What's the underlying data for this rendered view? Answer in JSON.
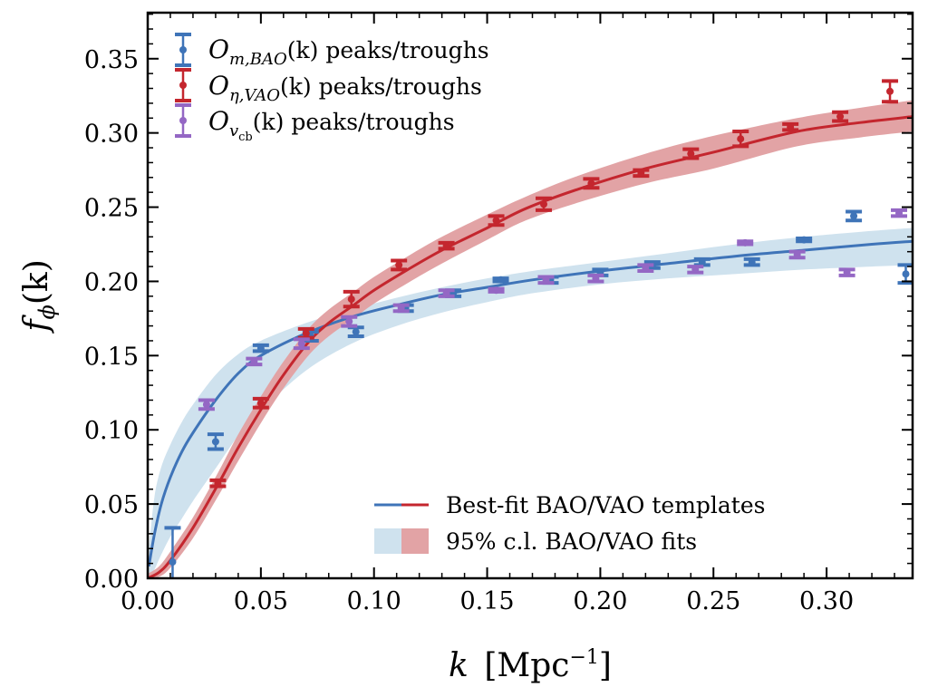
{
  "chart_data": {
    "type": "scatter",
    "title": "",
    "xlabel": "k [Mpc^-1]",
    "xlabel_parts": {
      "var": "k",
      "unit_open": "[Mpc",
      "unit_exp": "−1",
      "unit_close": "]"
    },
    "ylabel": "f_phi(k)",
    "ylabel_parts": {
      "var": "f",
      "sub": "ϕ",
      "arg": "(k)"
    },
    "xlim": [
      0.0,
      0.338
    ],
    "ylim": [
      0.0,
      0.381
    ],
    "xticks": [
      0.0,
      0.05,
      0.1,
      0.15,
      0.2,
      0.25,
      0.3
    ],
    "xtick_labels": [
      "0.00",
      "0.05",
      "0.10",
      "0.15",
      "0.20",
      "0.25",
      "0.30"
    ],
    "yticks": [
      0.0,
      0.05,
      0.1,
      0.15,
      0.2,
      0.25,
      0.3,
      0.35
    ],
    "ytick_labels": [
      "0.00",
      "0.05",
      "0.10",
      "0.15",
      "0.20",
      "0.25",
      "0.30",
      "0.35"
    ],
    "minor_tick_step": 0.01,
    "grid": false,
    "colors": {
      "bao": "#3f74b8",
      "vao": "#c4262e",
      "vcb": "#9467c4",
      "bao_band": "#cfe2ee",
      "vao_band": "#e2a3a5"
    },
    "series": [
      {
        "name": "O_m,BAO(k) peaks/troughs",
        "key": "bao",
        "kind": "errorbar",
        "x": [
          0.011,
          0.03,
          0.05,
          0.072,
          0.092,
          0.114,
          0.135,
          0.156,
          0.178,
          0.2,
          0.223,
          0.245,
          0.267,
          0.29,
          0.312,
          0.335
        ],
        "y": [
          0.011,
          0.092,
          0.155,
          0.163,
          0.166,
          0.182,
          0.192,
          0.201,
          0.201,
          0.206,
          0.211,
          0.213,
          0.213,
          0.228,
          0.244,
          0.205
        ],
        "err": [
          0.023,
          0.005,
          0.002,
          0.003,
          0.003,
          0.002,
          0.002,
          0.001,
          0.002,
          0.002,
          0.002,
          0.002,
          0.002,
          0.001,
          0.003,
          0.006
        ]
      },
      {
        "name": "O_eta,VAO(k) peaks/troughs",
        "key": "vao",
        "kind": "errorbar",
        "x": [
          0.031,
          0.05,
          0.07,
          0.09,
          0.111,
          0.132,
          0.154,
          0.175,
          0.196,
          0.218,
          0.24,
          0.262,
          0.284,
          0.306,
          0.328
        ],
        "y": [
          0.064,
          0.118,
          0.165,
          0.188,
          0.211,
          0.224,
          0.241,
          0.252,
          0.266,
          0.273,
          0.286,
          0.296,
          0.304,
          0.311,
          0.328
        ],
        "err": [
          0.002,
          0.003,
          0.003,
          0.005,
          0.003,
          0.002,
          0.003,
          0.004,
          0.003,
          0.002,
          0.003,
          0.005,
          0.002,
          0.003,
          0.007
        ]
      },
      {
        "name": "O_v_cb(k) peaks/troughs",
        "key": "vcb",
        "kind": "errorbar",
        "x": [
          0.026,
          0.047,
          0.068,
          0.089,
          0.112,
          0.132,
          0.154,
          0.176,
          0.198,
          0.22,
          0.242,
          0.264,
          0.287,
          0.309,
          0.332
        ],
        "y": [
          0.117,
          0.146,
          0.158,
          0.173,
          0.182,
          0.192,
          0.194,
          0.201,
          0.202,
          0.209,
          0.208,
          0.226,
          0.218,
          0.206,
          0.246
        ],
        "err": [
          0.003,
          0.002,
          0.003,
          0.003,
          0.002,
          0.002,
          0.001,
          0.002,
          0.002,
          0.002,
          0.002,
          0.001,
          0.002,
          0.002,
          0.002
        ]
      },
      {
        "name": "Best-fit BAO template",
        "key": "bao",
        "kind": "line",
        "x": [
          0.0005,
          0.003,
          0.006,
          0.01,
          0.015,
          0.02,
          0.03,
          0.04,
          0.05,
          0.07,
          0.09,
          0.11,
          0.13,
          0.15,
          0.17,
          0.2,
          0.23,
          0.26,
          0.29,
          0.32,
          0.338
        ],
        "y": [
          0.008,
          0.03,
          0.05,
          0.068,
          0.085,
          0.098,
          0.12,
          0.138,
          0.15,
          0.165,
          0.176,
          0.184,
          0.191,
          0.196,
          0.201,
          0.207,
          0.212,
          0.217,
          0.221,
          0.225,
          0.227
        ],
        "lower": [
          0.0,
          0.006,
          0.016,
          0.028,
          0.04,
          0.052,
          0.074,
          0.096,
          0.113,
          0.14,
          0.158,
          0.17,
          0.179,
          0.186,
          0.192,
          0.198,
          0.202,
          0.205,
          0.208,
          0.21,
          0.211
        ],
        "upper": [
          0.02,
          0.055,
          0.075,
          0.09,
          0.105,
          0.117,
          0.137,
          0.151,
          0.16,
          0.172,
          0.181,
          0.189,
          0.196,
          0.202,
          0.207,
          0.213,
          0.219,
          0.225,
          0.23,
          0.234,
          0.236
        ]
      },
      {
        "name": "Best-fit VAO template",
        "key": "vao",
        "kind": "line",
        "x": [
          0.0,
          0.005,
          0.01,
          0.02,
          0.031,
          0.04,
          0.051,
          0.06,
          0.071,
          0.08,
          0.091,
          0.1,
          0.115,
          0.13,
          0.15,
          0.167,
          0.19,
          0.22,
          0.25,
          0.287,
          0.315,
          0.338
        ],
        "y": [
          0.0,
          0.004,
          0.012,
          0.034,
          0.063,
          0.088,
          0.116,
          0.137,
          0.159,
          0.172,
          0.184,
          0.194,
          0.208,
          0.221,
          0.236,
          0.249,
          0.262,
          0.276,
          0.287,
          0.301,
          0.307,
          0.311
        ],
        "lower": [
          0.0,
          0.001,
          0.007,
          0.027,
          0.055,
          0.079,
          0.107,
          0.128,
          0.15,
          0.163,
          0.175,
          0.185,
          0.199,
          0.212,
          0.228,
          0.241,
          0.253,
          0.266,
          0.276,
          0.291,
          0.297,
          0.301
        ],
        "upper": [
          0.003,
          0.008,
          0.018,
          0.041,
          0.071,
          0.097,
          0.125,
          0.146,
          0.168,
          0.181,
          0.193,
          0.203,
          0.217,
          0.23,
          0.245,
          0.257,
          0.271,
          0.286,
          0.298,
          0.31,
          0.317,
          0.322
        ]
      }
    ],
    "legends": [
      {
        "placement": "top-left",
        "entries": [
          {
            "key": "bao",
            "math": "O",
            "sub": "m,BAO",
            "text": "(k) peaks/troughs"
          },
          {
            "key": "vao",
            "math": "O",
            "sub": "η,VAO",
            "text": "(k) peaks/troughs"
          },
          {
            "key": "vcb",
            "math": "O",
            "sub": "v",
            "subsub": "cb",
            "text": "(k) peaks/troughs"
          }
        ]
      },
      {
        "placement": "bottom-right",
        "entries": [
          {
            "kind": "line-pair",
            "text": "Best-fit BAO/VAO templates"
          },
          {
            "kind": "band-pair",
            "text": "95% c.l. BAO/VAO fits"
          }
        ]
      }
    ]
  }
}
